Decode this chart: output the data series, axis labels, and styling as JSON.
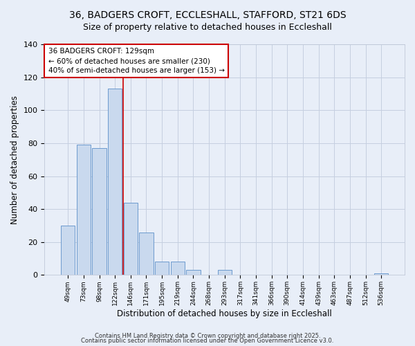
{
  "title": "36, BADGERS CROFT, ECCLESHALL, STAFFORD, ST21 6DS",
  "subtitle": "Size of property relative to detached houses in Eccleshall",
  "xlabel": "Distribution of detached houses by size in Eccleshall",
  "ylabel": "Number of detached properties",
  "bar_labels": [
    "49sqm",
    "73sqm",
    "98sqm",
    "122sqm",
    "146sqm",
    "171sqm",
    "195sqm",
    "219sqm",
    "244sqm",
    "268sqm",
    "293sqm",
    "317sqm",
    "341sqm",
    "366sqm",
    "390sqm",
    "414sqm",
    "439sqm",
    "463sqm",
    "487sqm",
    "512sqm",
    "536sqm"
  ],
  "bar_values": [
    30,
    79,
    77,
    113,
    44,
    26,
    8,
    8,
    3,
    0,
    3,
    0,
    0,
    0,
    0,
    0,
    0,
    0,
    0,
    0,
    1
  ],
  "bar_color": "#c9d9ee",
  "bar_edgecolor": "#5b8fc9",
  "vline_x": 3.5,
  "vline_color": "#cc0000",
  "annotation_title": "36 BADGERS CROFT: 129sqm",
  "annotation_line1": "← 60% of detached houses are smaller (230)",
  "annotation_line2": "40% of semi-detached houses are larger (153) →",
  "ylim": [
    0,
    140
  ],
  "yticks": [
    0,
    20,
    40,
    60,
    80,
    100,
    120,
    140
  ],
  "bg_color": "#e8eef8",
  "footer1": "Contains HM Land Registry data © Crown copyright and database right 2025.",
  "footer2": "Contains public sector information licensed under the Open Government Licence v3.0.",
  "title_fontsize": 10,
  "subtitle_fontsize": 9
}
